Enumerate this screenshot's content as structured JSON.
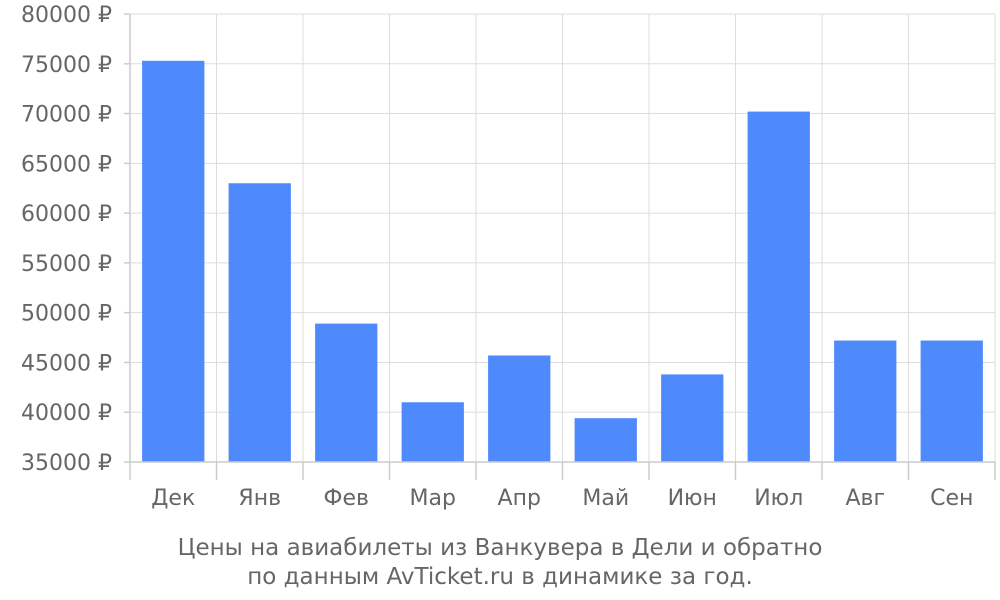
{
  "caption": {
    "line1": "Цены на авиабилеты из Ванкувера в Дели и обратно",
    "line2": "по данным AvTicket.ru в динамике за год."
  },
  "colors": {
    "bar": "#4e8afb",
    "grid": "#dddddd",
    "text": "#666666"
  },
  "chart_data": {
    "type": "bar",
    "categories": [
      "Дек",
      "Янв",
      "Фев",
      "Мар",
      "Апр",
      "Май",
      "Июн",
      "Июл",
      "Авг",
      "Сен"
    ],
    "values": [
      75300,
      63000,
      48900,
      41000,
      45700,
      39400,
      43800,
      70200,
      47200,
      47200
    ],
    "ylim": [
      35000,
      80000
    ],
    "ytick_step": 5000,
    "ytick_labels": [
      "35000 ₽",
      "40000 ₽",
      "45000 ₽",
      "50000 ₽",
      "55000 ₽",
      "60000 ₽",
      "65000 ₽",
      "70000 ₽",
      "75000 ₽",
      "80000 ₽"
    ],
    "grid": true,
    "legend": "none"
  }
}
